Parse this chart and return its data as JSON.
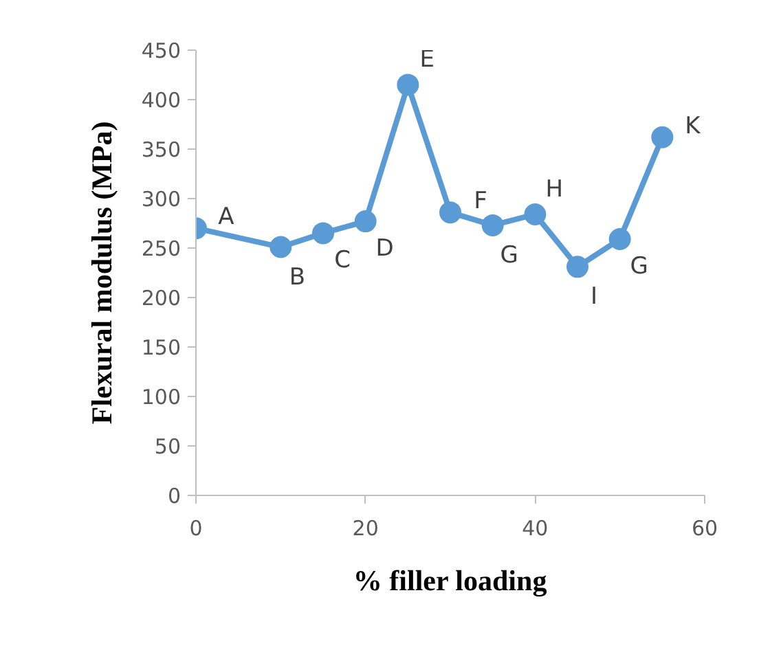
{
  "chart_data": {
    "type": "line",
    "xlabel": "% filler loading",
    "ylabel": "Flexural modulus (MPa)",
    "x": [
      0,
      10,
      15,
      20,
      25,
      30,
      35,
      40,
      45,
      50,
      55
    ],
    "series": [
      {
        "color": "#5b9bd5",
        "values": [
          270,
          251,
          265,
          277,
          415,
          286,
          273,
          284,
          231,
          259,
          362
        ]
      }
    ],
    "xlim": [
      0,
      60
    ],
    "xticks": [
      0,
      20,
      40,
      60
    ],
    "ylim": [
      0,
      450
    ],
    "yticks": [
      0,
      50,
      100,
      150,
      200,
      250,
      300,
      350,
      400,
      450
    ],
    "grid": false,
    "marker": "circle",
    "line_style": "solid",
    "annotations": [
      {
        "text": "A",
        "x": 0,
        "y": 270
      },
      {
        "text": "B",
        "x": 10,
        "y": 251
      },
      {
        "text": "C",
        "x": 15,
        "y": 265
      },
      {
        "text": "D",
        "x": 20,
        "y": 277
      },
      {
        "text": "E",
        "x": 25,
        "y": 415
      },
      {
        "text": "F",
        "x": 30,
        "y": 286
      },
      {
        "text": "G",
        "x": 35,
        "y": 273
      },
      {
        "text": "H",
        "x": 40,
        "y": 284
      },
      {
        "text": "I",
        "x": 45,
        "y": 231
      },
      {
        "text": "G",
        "x": 50,
        "y": 259
      },
      {
        "text": "K",
        "x": 55,
        "y": 362
      }
    ]
  }
}
